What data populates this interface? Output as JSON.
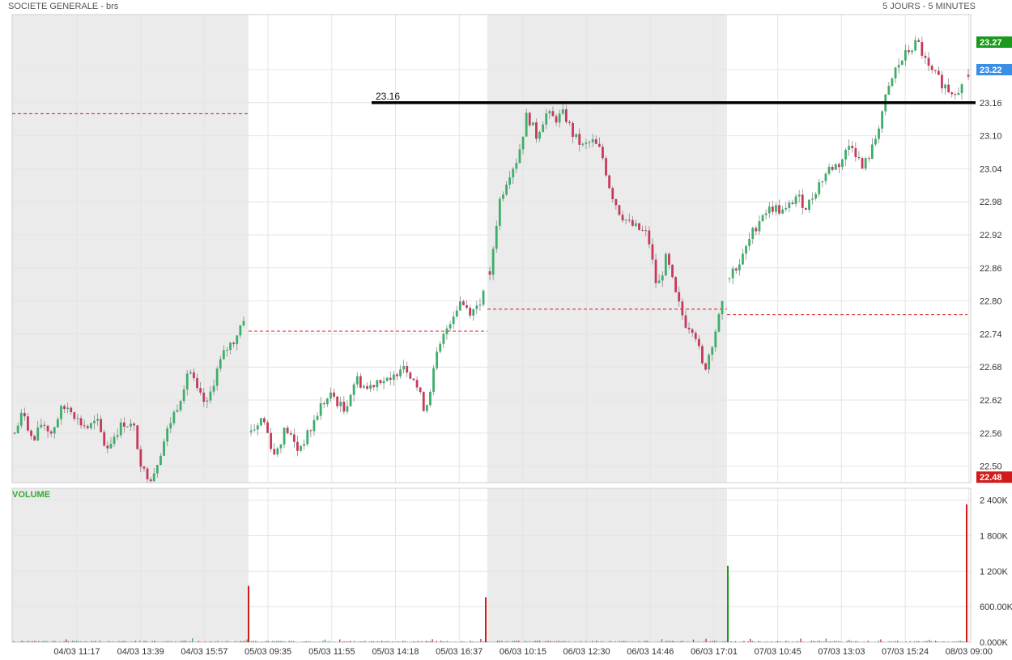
{
  "header": {
    "title": "SOCIETE GENERALE - brs",
    "period": "5 JOURS - 5 MINUTES"
  },
  "chart_data": {
    "type": "candlestick",
    "title": "SOCIETE GENERALE - brs",
    "price_axis": {
      "ticks": [
        22.5,
        22.56,
        22.62,
        22.68,
        22.74,
        22.8,
        22.86,
        22.92,
        22.98,
        23.04,
        23.1,
        23.16,
        23.22
      ],
      "range": [
        22.47,
        23.32
      ]
    },
    "volume_axis": {
      "label": "VOLUME",
      "ticks": [
        "0.000K",
        "600.00K",
        "1 200K",
        "1 800K",
        "2 400K"
      ],
      "tick_values": [
        0,
        600,
        1200,
        1800,
        2400
      ],
      "range": [
        0,
        2600
      ]
    },
    "x_tick_labels": [
      "04/03 11:17",
      "04/03 13:39",
      "04/03 15:57",
      "05/03 09:35",
      "05/03 11:55",
      "05/03 14:18",
      "05/03 16:37",
      "06/03 10:15",
      "06/03 12:30",
      "06/03 14:46",
      "06/03 17:01",
      "07/03 10:45",
      "07/03 13:03",
      "07/03 15:24",
      "08/03 09:00"
    ],
    "sessions": [
      "04/03",
      "05/03",
      "06/03",
      "07/03",
      "08/03"
    ],
    "price_tags": [
      {
        "value": 23.27,
        "label": "23.27",
        "color": "#1a9a1a"
      },
      {
        "value": 23.22,
        "label": "23.22",
        "color": "#3a8ee6"
      },
      {
        "value": 22.48,
        "label": "22.48",
        "color": "#d11a1a"
      }
    ],
    "annotation_line": {
      "value": 23.16,
      "label": "23.16"
    },
    "previous_close_lines": [
      {
        "session": "04/03",
        "value": 23.14
      },
      {
        "session": "05/03",
        "value": 22.745
      },
      {
        "session": "06/03",
        "value": 22.785
      },
      {
        "session": "07/03",
        "value": 22.775
      }
    ],
    "path": [
      {
        "session": "04/03",
        "points": [
          22.56,
          22.6,
          22.54,
          22.58,
          22.56,
          22.6,
          22.61,
          22.58,
          22.57,
          22.58,
          22.53,
          22.56,
          22.58,
          22.57,
          22.49,
          22.48,
          22.53,
          22.58,
          22.62,
          22.68,
          22.63,
          22.61,
          22.67,
          22.71,
          22.73,
          22.77
        ]
      },
      {
        "session": "05/03",
        "points": [
          22.56,
          22.59,
          22.52,
          22.57,
          22.53,
          22.56,
          22.61,
          22.63,
          22.6,
          22.66,
          22.64,
          22.66,
          22.65,
          22.69,
          22.66,
          22.6,
          22.7,
          22.76,
          22.8,
          22.78,
          22.81
        ]
      },
      {
        "session": "06/03",
        "points": [
          22.85,
          22.98,
          23.03,
          23.06,
          23.14,
          23.1,
          23.14,
          23.13,
          23.14,
          23.1,
          23.08,
          23.09,
          23.07,
          23.0,
          22.96,
          22.94,
          22.93,
          22.92,
          22.82,
          22.88,
          22.81,
          22.76,
          22.75,
          22.67,
          22.73,
          22.79
        ]
      },
      {
        "session": "07/03",
        "points": [
          22.85,
          22.87,
          22.92,
          22.96,
          22.97,
          22.96,
          22.99,
          22.97,
          23.01,
          23.04,
          23.05,
          23.09,
          23.04,
          23.08,
          23.16,
          23.22,
          23.25,
          23.27,
          23.22,
          23.2,
          23.18,
          23.19
        ]
      },
      {
        "session": "08/03",
        "points": [
          23.21
        ]
      }
    ],
    "volume_spikes": [
      {
        "x_label": "04/03 15:57",
        "value": 950,
        "color": "#d11a1a"
      },
      {
        "x_label": "05/03 16:37",
        "value": 760,
        "color": "#d11a1a"
      },
      {
        "x_label": "06/03 17:01",
        "value": 1290,
        "color": "#1a9a1a"
      },
      {
        "x_label": "07/03 15:24",
        "value": 2330,
        "color": "#d11a1a"
      }
    ],
    "colors": {
      "up": "#3cae6a",
      "down": "#c8385b",
      "shading": "#ebebeb",
      "prev_close": "#d11a1a",
      "grid": "#e4e4e4"
    },
    "grid": true
  }
}
